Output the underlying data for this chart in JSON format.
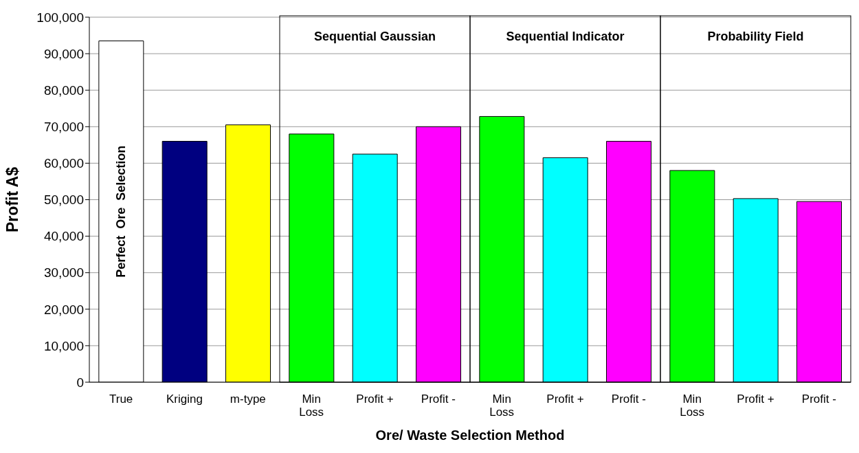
{
  "chart_data": {
    "type": "bar",
    "xlabel": "Ore/ Waste Selection Method",
    "ylabel": "Profit A$",
    "categories": [
      "True",
      "Kriging",
      "m-type",
      "Min Loss",
      "Profit +",
      "Profit -",
      "Min Loss",
      "Profit +",
      "Profit -",
      "Min Loss",
      "Profit +",
      "Profit -"
    ],
    "values": [
      93500,
      66000,
      70500,
      68000,
      62500,
      70000,
      72800,
      61500,
      66000,
      58000,
      50300,
      49500
    ],
    "colors": [
      "#ffffff",
      "#000080",
      "#ffff00",
      "#00ff00",
      "#00ffff",
      "#ff00ff",
      "#00ff00",
      "#00ffff",
      "#ff00ff",
      "#00ff00",
      "#00ffff",
      "#ff00ff"
    ],
    "ylim": [
      0,
      100000
    ],
    "yticks": [
      0,
      {
        "value": 10000,
        "label": "10,000"
      },
      {
        "value": 20000,
        "label": "20,000"
      },
      {
        "value": 30000,
        "label": "30,000"
      },
      {
        "value": 40000,
        "label": "40,000"
      },
      {
        "value": 50000,
        "label": "50,000"
      },
      {
        "value": 60000,
        "label": "60,000"
      },
      {
        "value": 70000,
        "label": "70,000"
      },
      {
        "value": 80000,
        "label": "80,000"
      },
      {
        "value": 90000,
        "label": "90,000"
      },
      {
        "value": 100000,
        "label": "100,000"
      }
    ],
    "grid": "y",
    "annotations": [
      "Perfect  Ore  Selection",
      "Sequential Gaussian",
      "Sequential Indicator",
      "Probability Field"
    ]
  }
}
